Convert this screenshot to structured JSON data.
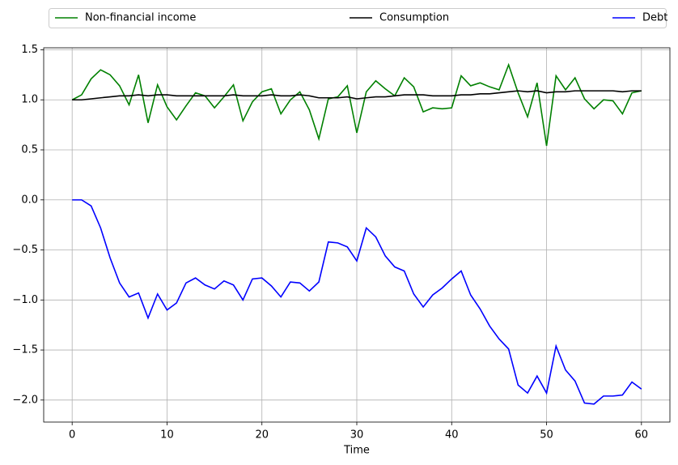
{
  "chart_data": {
    "type": "line",
    "x": [
      0,
      1,
      2,
      3,
      4,
      5,
      6,
      7,
      8,
      9,
      10,
      11,
      12,
      13,
      14,
      15,
      16,
      17,
      18,
      19,
      20,
      21,
      22,
      23,
      24,
      25,
      26,
      27,
      28,
      29,
      30,
      31,
      32,
      33,
      34,
      35,
      36,
      37,
      38,
      39,
      40,
      41,
      42,
      43,
      44,
      45,
      46,
      47,
      48,
      49,
      50,
      51,
      52,
      53,
      54,
      55,
      56,
      57,
      58,
      59,
      60
    ],
    "series": [
      {
        "name": "Non-financial income",
        "color": "#008000",
        "values": [
          1.0,
          1.05,
          1.21,
          1.3,
          1.25,
          1.14,
          0.95,
          1.25,
          0.77,
          1.15,
          0.93,
          0.8,
          0.94,
          1.07,
          1.04,
          0.92,
          1.03,
          1.15,
          0.79,
          0.98,
          1.08,
          1.11,
          0.86,
          1.0,
          1.08,
          0.9,
          0.61,
          1.01,
          1.03,
          1.14,
          0.67,
          1.08,
          1.19,
          1.11,
          1.04,
          1.22,
          1.13,
          0.88,
          0.92,
          0.91,
          0.92,
          1.24,
          1.14,
          1.17,
          1.13,
          1.1,
          1.35,
          1.07,
          0.83,
          1.17,
          0.54,
          1.24,
          1.1,
          1.22,
          1.01,
          0.91,
          1.0,
          0.99,
          0.86,
          1.07,
          1.09
        ]
      },
      {
        "name": "Consumption",
        "color": "#000000",
        "values": [
          1.0,
          1.0,
          1.01,
          1.02,
          1.03,
          1.04,
          1.04,
          1.05,
          1.04,
          1.05,
          1.05,
          1.04,
          1.04,
          1.04,
          1.04,
          1.04,
          1.04,
          1.05,
          1.04,
          1.04,
          1.04,
          1.05,
          1.04,
          1.04,
          1.05,
          1.04,
          1.02,
          1.02,
          1.02,
          1.03,
          1.01,
          1.02,
          1.03,
          1.03,
          1.04,
          1.05,
          1.05,
          1.05,
          1.04,
          1.04,
          1.04,
          1.05,
          1.05,
          1.06,
          1.06,
          1.07,
          1.08,
          1.09,
          1.08,
          1.09,
          1.07,
          1.08,
          1.08,
          1.09,
          1.09,
          1.09,
          1.09,
          1.09,
          1.08,
          1.09,
          1.09
        ]
      },
      {
        "name": "Debt",
        "color": "#0000ff",
        "values": [
          0.0,
          0.0,
          -0.06,
          -0.28,
          -0.58,
          -0.83,
          -0.97,
          -0.93,
          -1.18,
          -0.94,
          -1.1,
          -1.03,
          -0.83,
          -0.78,
          -0.85,
          -0.89,
          -0.81,
          -0.85,
          -1.0,
          -0.79,
          -0.78,
          -0.86,
          -0.97,
          -0.82,
          -0.83,
          -0.91,
          -0.82,
          -0.42,
          -0.43,
          -0.47,
          -0.61,
          -0.28,
          -0.37,
          -0.56,
          -0.67,
          -0.71,
          -0.94,
          -1.07,
          -0.95,
          -0.88,
          -0.79,
          -0.71,
          -0.95,
          -1.09,
          -1.26,
          -1.39,
          -1.49,
          -1.85,
          -1.93,
          -1.76,
          -1.93,
          -1.46,
          -1.7,
          -1.81,
          -2.03,
          -2.04,
          -1.96,
          -1.96,
          -1.95,
          -1.82,
          -1.89
        ]
      }
    ],
    "xlabel": "Time",
    "xlim": [
      -3,
      63
    ],
    "xticks": [
      0,
      10,
      20,
      30,
      40,
      50,
      60
    ],
    "ylim": [
      -2.22,
      1.52
    ],
    "yticks": [
      {
        "value": -2.0,
        "label": "−2.0"
      },
      {
        "value": -1.5,
        "label": "−1.5"
      },
      {
        "value": -1.0,
        "label": "−1.0"
      },
      {
        "value": -0.5,
        "label": "−0.5"
      },
      {
        "value": 0.0,
        "label": "0.0"
      },
      0.5,
      {
        "value": 1.0,
        "label": "1.0"
      },
      1.5
    ],
    "grid": true,
    "legend": "top"
  }
}
